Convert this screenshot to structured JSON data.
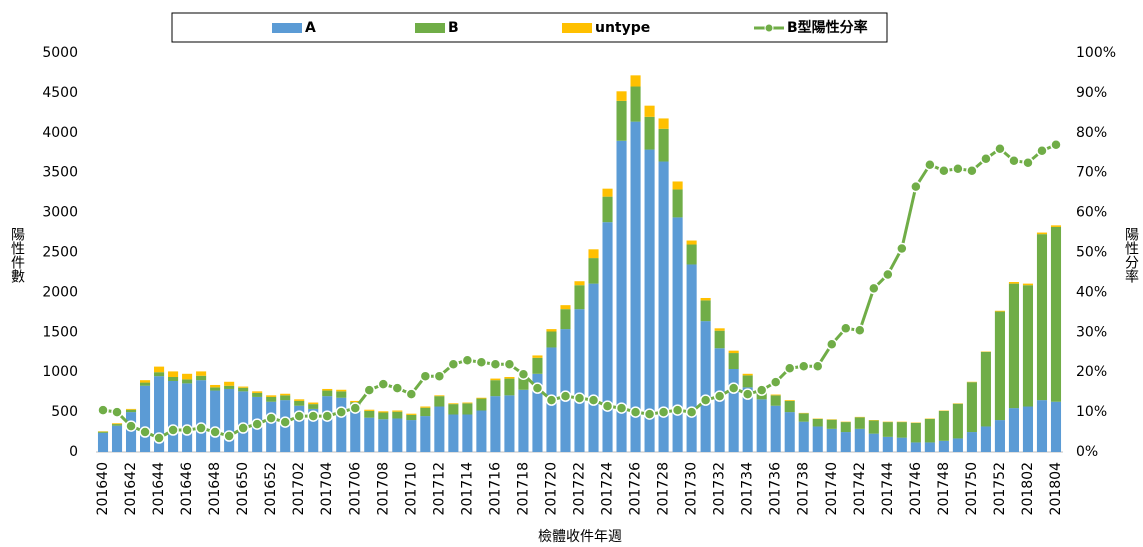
{
  "chart_data": {
    "type": "bar",
    "x_label": "檢體收件年週",
    "y_label": "陽性件數",
    "y2_label": "陽性分率",
    "categories": [
      "201640",
      null,
      "201642",
      null,
      "201644",
      null,
      "201646",
      null,
      "201648",
      null,
      "201650",
      null,
      "201652",
      null,
      "201702",
      null,
      "201704",
      null,
      "201706",
      null,
      "201708",
      null,
      "201710",
      null,
      "201712",
      null,
      "201714",
      null,
      "201716",
      null,
      "201718",
      null,
      "201720",
      null,
      "201722",
      null,
      "201724",
      null,
      "201726",
      null,
      "201728",
      null,
      "201730",
      null,
      "201732",
      null,
      "201734",
      null,
      "201736",
      null,
      "201738",
      null,
      "201740",
      null,
      "201742",
      null,
      "201744",
      null,
      "201746",
      null,
      "201748",
      null,
      "201750",
      null,
      "201752",
      null,
      "201802",
      null,
      "201804"
    ],
    "series": [
      {
        "name": "A",
        "color": "#5b9bd5",
        "values": [
          240,
          330,
          500,
          830,
          950,
          890,
          860,
          900,
          770,
          790,
          760,
          690,
          630,
          650,
          580,
          540,
          700,
          680,
          550,
          430,
          410,
          420,
          400,
          450,
          570,
          470,
          470,
          520,
          700,
          710,
          780,
          980,
          1310,
          1540,
          1790,
          2110,
          2880,
          3900,
          4140,
          3790,
          3640,
          2940,
          2350,
          1640,
          1300,
          1040,
          810,
          660,
          580,
          500,
          380,
          320,
          290,
          250,
          290,
          230,
          190,
          180,
          120,
          120,
          140,
          170,
          250,
          320,
          400,
          550,
          570,
          650,
          630
        ]
      },
      {
        "name": "B",
        "color": "#70ad47",
        "values": [
          15,
          20,
          30,
          40,
          50,
          50,
          50,
          55,
          40,
          40,
          45,
          50,
          60,
          60,
          60,
          60,
          70,
          80,
          75,
          85,
          85,
          85,
          65,
          105,
          130,
          130,
          140,
          150,
          200,
          210,
          190,
          200,
          200,
          250,
          300,
          320,
          320,
          500,
          440,
          410,
          410,
          350,
          250,
          260,
          220,
          200,
          150,
          120,
          130,
          140,
          105,
          95,
          115,
          125,
          145,
          165,
          185,
          195,
          245,
          295,
          375,
          435,
          625,
          935,
          1360,
          1560,
          1520,
          2080,
          2190
        ]
      },
      {
        "name": "untype",
        "color": "#ffc000",
        "values": [
          5,
          10,
          10,
          30,
          70,
          70,
          70,
          55,
          30,
          50,
          15,
          20,
          20,
          20,
          20,
          20,
          20,
          20,
          15,
          15,
          15,
          15,
          15,
          15,
          10,
          10,
          10,
          10,
          20,
          20,
          10,
          30,
          30,
          50,
          50,
          110,
          100,
          120,
          140,
          140,
          130,
          100,
          50,
          30,
          30,
          30,
          20,
          10,
          10,
          10,
          5,
          5,
          5,
          5,
          5,
          5,
          5,
          5,
          5,
          5,
          5,
          5,
          5,
          5,
          10,
          20,
          20,
          20,
          20
        ]
      },
      {
        "name": "B型陽性分率",
        "color": "#70ad47",
        "type": "line",
        "axis": "y2",
        "values": [
          10.5,
          10,
          6.5,
          5,
          3.5,
          5.5,
          5.5,
          6,
          5,
          4,
          6,
          7,
          8.5,
          7.5,
          9,
          9,
          9,
          10,
          11,
          15.5,
          17,
          16,
          14.5,
          19,
          19,
          22,
          23,
          22.5,
          22,
          22,
          19.5,
          16,
          13,
          14,
          13.5,
          13,
          11.5,
          11,
          10,
          9.5,
          10,
          10.5,
          10,
          13,
          14,
          16,
          14.5,
          15.5,
          17.5,
          21,
          21.5,
          21.5,
          27,
          31,
          30.5,
          41,
          44.5,
          51,
          66.5,
          72,
          70.5,
          71,
          70.5,
          73.5,
          76,
          73,
          72.5,
          75.5,
          77
        ]
      }
    ],
    "ylim": [
      0,
      5000
    ],
    "yticks": [
      0,
      500,
      1000,
      1500,
      2000,
      2500,
      3000,
      3500,
      4000,
      4500,
      5000
    ],
    "y2lim": [
      0,
      100
    ],
    "y2ticks": [
      {
        "value": 0,
        "label": "0%"
      },
      {
        "value": 10,
        "label": "10%"
      },
      {
        "value": 20,
        "label": "20%"
      },
      {
        "value": 30,
        "label": "30%"
      },
      {
        "value": 40,
        "label": "40%"
      },
      {
        "value": 50,
        "label": "50%"
      },
      {
        "value": 60,
        "label": "60%"
      },
      {
        "value": 70,
        "label": "70%"
      },
      {
        "value": 80,
        "label": "80%"
      },
      {
        "value": 90,
        "label": "90%"
      },
      {
        "value": 100,
        "label": "100%"
      }
    ],
    "stacked": true,
    "grid": false,
    "legend": "top"
  }
}
